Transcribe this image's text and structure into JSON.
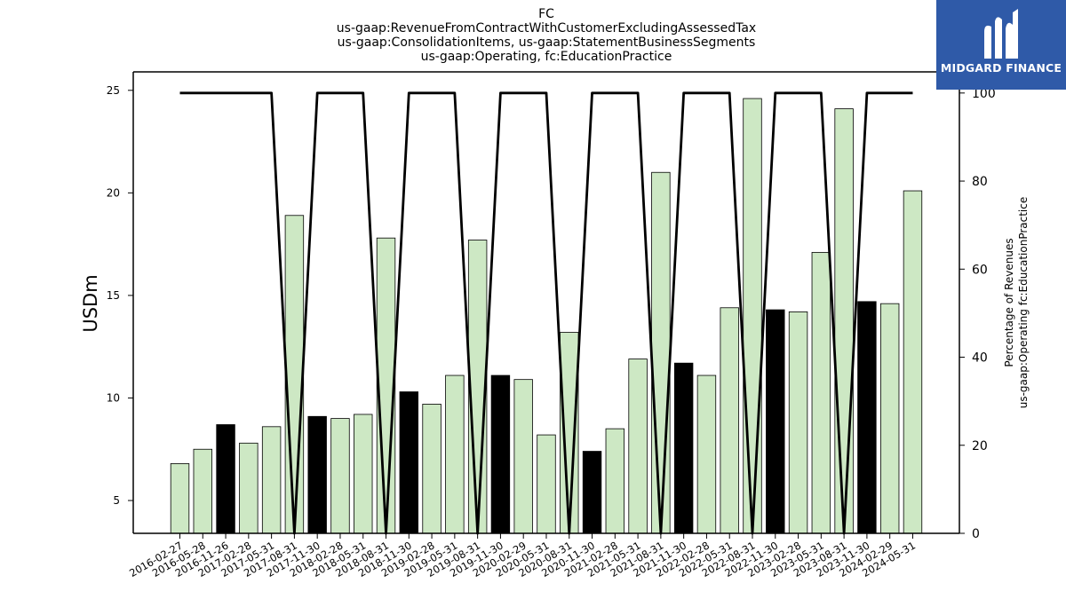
{
  "chart_data": {
    "type": "bar",
    "title_lines": [
      "FC",
      "us-gaap:RevenueFromContractWithCustomerExcludingAssessedTax",
      "us-gaap:ConsolidationItems, us-gaap:StatementBusinessSegments",
      "us-gaap:Operating, fc:EducationPractice"
    ],
    "ylabel": "USDm",
    "y2label_lines": [
      "Percentage of Revenues",
      "us-gaap:Operating fc:EducationPractice"
    ],
    "ylim": [
      3.4,
      25.9
    ],
    "yticks": [
      5,
      10,
      15,
      20,
      25
    ],
    "y2lim": [
      0,
      104.8
    ],
    "y2ticks": [
      0,
      20,
      40,
      60,
      80,
      100
    ],
    "categories": [
      "2016-02-27",
      "2016-05-28",
      "2016-11-26",
      "2017-02-28",
      "2017-05-31",
      "2017-08-31",
      "2017-11-30",
      "2018-02-28",
      "2018-05-31",
      "2018-08-31",
      "2018-11-30",
      "2019-02-28",
      "2019-05-31",
      "2019-08-31",
      "2019-11-30",
      "2020-02-29",
      "2020-05-31",
      "2020-08-31",
      "2020-11-30",
      "2021-02-28",
      "2021-05-31",
      "2021-08-31",
      "2021-11-30",
      "2022-02-28",
      "2022-05-31",
      "2022-08-31",
      "2022-11-30",
      "2023-02-28",
      "2023-05-31",
      "2023-08-31",
      "2023-11-30",
      "2024-02-29",
      "2024-05-31"
    ],
    "series": [
      {
        "values": [
          6.8,
          7.5,
          8.7,
          7.8,
          8.6,
          18.9,
          9.1,
          9.0,
          9.2,
          17.8,
          10.3,
          9.7,
          11.1,
          17.7,
          11.1,
          10.9,
          8.2,
          13.2,
          7.4,
          8.5,
          11.9,
          21.0,
          11.7,
          11.1,
          14.4,
          24.6,
          14.3,
          14.2,
          17.1,
          24.1,
          14.7,
          14.6,
          20.1
        ],
        "highlight": [
          false,
          false,
          true,
          false,
          false,
          false,
          true,
          false,
          false,
          false,
          true,
          false,
          false,
          false,
          true,
          false,
          false,
          false,
          true,
          false,
          false,
          false,
          true,
          false,
          false,
          false,
          true,
          false,
          false,
          false,
          true,
          false,
          false
        ]
      },
      {
        "type": "line",
        "axis": "right",
        "values": [
          100,
          100,
          100,
          100,
          100,
          0,
          100,
          100,
          100,
          0,
          100,
          100,
          100,
          0,
          100,
          100,
          100,
          0,
          100,
          100,
          100,
          0,
          100,
          100,
          100,
          0,
          100,
          100,
          100,
          0,
          100,
          100,
          100
        ]
      }
    ],
    "colors": {
      "bar": "#cde8c4",
      "bar_highlight": "#000000",
      "bar_edge": "#000000",
      "line": "#000000"
    },
    "grid": false
  },
  "logo": {
    "text": "MIDGARD FINANCE",
    "background": "#2f5aa8"
  }
}
